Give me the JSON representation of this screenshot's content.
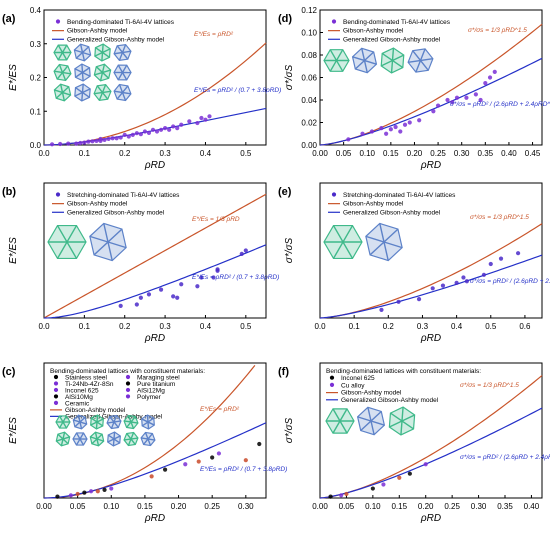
{
  "colors": {
    "bending": "#7a2fd6",
    "stretching": "#4a2ac9",
    "gibson_ashby": "#c9552a",
    "generalized": "#2430c8",
    "axis": "#000000",
    "lattice_green": "#3fb98a",
    "lattice_blue": "#5d82c8"
  },
  "chart_data": [
    {
      "id": "a",
      "panel_label": "(a)",
      "type": "scatter",
      "xlabel": "ρRD",
      "ylabel": "E*/ES",
      "xlim": [
        0,
        0.55
      ],
      "ylim": [
        0,
        0.4
      ],
      "xticks": [
        0.0,
        0.1,
        0.2,
        0.3,
        0.4,
        0.5
      ],
      "yticks": [
        0.0,
        0.1,
        0.2,
        0.3,
        0.4
      ],
      "tick_labels_x": [
        "0.0",
        "0.1",
        "0.2",
        "0.3",
        "0.4",
        "0.5"
      ],
      "tick_labels_y": [
        "0.0",
        "0.1",
        "0.2",
        "0.3",
        "0.4"
      ],
      "legend": [
        "Bending-dominated Ti-6Al-4V lattices",
        "Gibson-Ashby model",
        "Generalized Gibson-Ashby model"
      ],
      "equations": [
        {
          "text": "E*/Es = ρRD²",
          "series": "Gibson-Ashby model"
        },
        {
          "text": "E*/Es = ρRD² / (0.7 + 3.8ρRD)",
          "series": "Generalized Gibson-Ashby model"
        }
      ],
      "points": [
        [
          0.02,
          0.002
        ],
        [
          0.04,
          0.003
        ],
        [
          0.06,
          0.004
        ],
        [
          0.08,
          0.004
        ],
        [
          0.09,
          0.006
        ],
        [
          0.1,
          0.007
        ],
        [
          0.11,
          0.01
        ],
        [
          0.12,
          0.011
        ],
        [
          0.13,
          0.012
        ],
        [
          0.14,
          0.012
        ],
        [
          0.14,
          0.018
        ],
        [
          0.15,
          0.015
        ],
        [
          0.16,
          0.018
        ],
        [
          0.17,
          0.02
        ],
        [
          0.18,
          0.02
        ],
        [
          0.19,
          0.022
        ],
        [
          0.2,
          0.03
        ],
        [
          0.21,
          0.025
        ],
        [
          0.22,
          0.03
        ],
        [
          0.23,
          0.035
        ],
        [
          0.24,
          0.032
        ],
        [
          0.25,
          0.04
        ],
        [
          0.26,
          0.036
        ],
        [
          0.27,
          0.045
        ],
        [
          0.28,
          0.04
        ],
        [
          0.29,
          0.045
        ],
        [
          0.3,
          0.05
        ],
        [
          0.31,
          0.045
        ],
        [
          0.32,
          0.055
        ],
        [
          0.33,
          0.05
        ],
        [
          0.34,
          0.06
        ],
        [
          0.36,
          0.07
        ],
        [
          0.38,
          0.065
        ],
        [
          0.39,
          0.08
        ],
        [
          0.4,
          0.075
        ],
        [
          0.41,
          0.085
        ]
      ],
      "series": [
        {
          "name": "Gibson-Ashby model",
          "kind": "power",
          "coef": 1,
          "exp": 2,
          "color": "#c9552a"
        },
        {
          "name": "Generalized Gibson-Ashby model",
          "kind": "generalized",
          "a": 0.7,
          "b": 3.8,
          "color": "#2430c8"
        }
      ]
    },
    {
      "id": "d",
      "panel_label": "(d)",
      "type": "scatter",
      "xlabel": "ρRD",
      "ylabel": "σ*/σS",
      "xlim": [
        0,
        0.47
      ],
      "ylim": [
        0,
        0.12
      ],
      "xticks": [
        0.0,
        0.05,
        0.1,
        0.15,
        0.2,
        0.25,
        0.3,
        0.35,
        0.4,
        0.45
      ],
      "yticks": [
        0.0,
        0.02,
        0.04,
        0.06,
        0.08,
        0.1,
        0.12
      ],
      "tick_labels_x": [
        "0.00",
        "0.05",
        "0.10",
        "0.15",
        "0.20",
        "0.25",
        "0.30",
        "0.35",
        "0.40",
        "0.45"
      ],
      "tick_labels_y": [
        "0.00",
        "0.02",
        "0.04",
        "0.06",
        "0.08",
        "0.10",
        "0.12"
      ],
      "legend": [
        "Bending-dominated Ti-6Al-4V lattices",
        "Gibson-Ashby model",
        "Generalized Gibson-Ashby model"
      ],
      "equations": [
        {
          "text": "σ*/σs = 1/3 ρRD^1.5",
          "series": "Gibson-Ashby model"
        },
        {
          "text": "σ*/σs = ρRD² / (2.6ρRD + 2.4ρRD^0.5)",
          "series": "Generalized Gibson-Ashby model"
        }
      ],
      "points": [
        [
          0.06,
          0.005
        ],
        [
          0.09,
          0.01
        ],
        [
          0.11,
          0.012
        ],
        [
          0.13,
          0.015
        ],
        [
          0.14,
          0.01
        ],
        [
          0.15,
          0.014
        ],
        [
          0.16,
          0.016
        ],
        [
          0.17,
          0.012
        ],
        [
          0.18,
          0.018
        ],
        [
          0.19,
          0.02
        ],
        [
          0.21,
          0.022
        ],
        [
          0.24,
          0.03
        ],
        [
          0.25,
          0.035
        ],
        [
          0.27,
          0.04
        ],
        [
          0.28,
          0.038
        ],
        [
          0.29,
          0.042
        ],
        [
          0.31,
          0.042
        ],
        [
          0.33,
          0.045
        ],
        [
          0.34,
          0.04
        ],
        [
          0.35,
          0.055
        ],
        [
          0.36,
          0.06
        ],
        [
          0.37,
          0.065
        ]
      ],
      "series": [
        {
          "name": "Gibson-Ashby model",
          "kind": "power",
          "coef": 0.3333,
          "exp": 1.5,
          "color": "#c9552a"
        },
        {
          "name": "Generalized Gibson-Ashby model",
          "kind": "generalized_sqrt",
          "a": 2.6,
          "b": 2.4,
          "color": "#2430c8"
        }
      ]
    },
    {
      "id": "b",
      "panel_label": "(b)",
      "type": "scatter",
      "xlabel": "ρRD",
      "ylabel": "E*/ES",
      "xlim": [
        0,
        0.55
      ],
      "ylim": [
        0,
        0.2
      ],
      "xticks": [
        0.0,
        0.1,
        0.2,
        0.3,
        0.4,
        0.5
      ],
      "yticks": [],
      "tick_labels_x": [
        "0.0",
        "0.1",
        "0.2",
        "0.3",
        "0.4",
        "0.5"
      ],
      "tick_labels_y": [],
      "legend": [
        "Stretching-dominated Ti-6Al-4V lattices",
        "Gibson-Ashby model",
        "Generalized Gibson-Ashby model"
      ],
      "equations": [
        {
          "text": "E*/Es = 1/3 ρRD",
          "series": "Gibson-Ashby model"
        },
        {
          "text": "E*/Es = ρRD² / (0.7 + 3.8ρRD)",
          "series": "Generalized Gibson-Ashby model"
        }
      ],
      "points": [
        [
          0.19,
          0.018
        ],
        [
          0.23,
          0.02
        ],
        [
          0.24,
          0.03
        ],
        [
          0.26,
          0.035
        ],
        [
          0.29,
          0.042
        ],
        [
          0.32,
          0.032
        ],
        [
          0.33,
          0.03
        ],
        [
          0.34,
          0.05
        ],
        [
          0.38,
          0.047
        ],
        [
          0.39,
          0.06
        ],
        [
          0.42,
          0.06
        ],
        [
          0.43,
          0.07
        ],
        [
          0.43,
          0.072
        ],
        [
          0.49,
          0.095
        ],
        [
          0.5,
          0.1
        ]
      ],
      "series": [
        {
          "name": "Gibson-Ashby model",
          "kind": "power",
          "coef": 0.3333,
          "exp": 1,
          "color": "#c9552a"
        },
        {
          "name": "Generalized Gibson-Ashby model",
          "kind": "generalized",
          "a": 0.7,
          "b": 3.8,
          "color": "#2430c8"
        }
      ]
    },
    {
      "id": "e",
      "panel_label": "(e)",
      "type": "scatter",
      "xlabel": "ρRD",
      "ylabel": "σ*/σS",
      "xlim": [
        0,
        0.65
      ],
      "ylim": [
        0,
        0.25
      ],
      "xticks": [
        0.0,
        0.1,
        0.2,
        0.3,
        0.4,
        0.5,
        0.6
      ],
      "yticks": [],
      "tick_labels_x": [
        "0.0",
        "0.1",
        "0.2",
        "0.3",
        "0.4",
        "0.5",
        "0.6"
      ],
      "tick_labels_y": [],
      "legend": [
        "Stretching-dominated Ti-6Al-4V lattices",
        "Gibson-Ashby model",
        "Generalized Gibson-Ashby model"
      ],
      "equations": [
        {
          "text": "σ*/σs = 1/3 ρRD^1.5",
          "series": "Gibson-Ashby model"
        },
        {
          "text": "σ*/σs = ρRD² / (2.6ρRD + 2.4ρRD^0.5)",
          "series": "Generalized Gibson-Ashby model"
        }
      ],
      "points": [
        [
          0.18,
          0.015
        ],
        [
          0.23,
          0.03
        ],
        [
          0.29,
          0.035
        ],
        [
          0.33,
          0.055
        ],
        [
          0.36,
          0.06
        ],
        [
          0.4,
          0.065
        ],
        [
          0.42,
          0.075
        ],
        [
          0.43,
          0.068
        ],
        [
          0.48,
          0.08
        ],
        [
          0.5,
          0.1
        ],
        [
          0.53,
          0.11
        ],
        [
          0.58,
          0.12
        ]
      ],
      "series": [
        {
          "name": "Gibson-Ashby model",
          "kind": "power",
          "coef": 0.3333,
          "exp": 1.5,
          "color": "#c9552a"
        },
        {
          "name": "Generalized Gibson-Ashby model",
          "kind": "generalized_sqrt",
          "a": 2.6,
          "b": 2.4,
          "color": "#2430c8"
        }
      ]
    },
    {
      "id": "c",
      "panel_label": "(c)",
      "type": "scatter",
      "xlabel": "ρRD",
      "ylabel": "E*/ES",
      "xlim": [
        0,
        0.33
      ],
      "ylim": [
        0,
        0.1
      ],
      "xticks": [
        0.0,
        0.05,
        0.1,
        0.15,
        0.2,
        0.25,
        0.3
      ],
      "yticks": [],
      "tick_labels_x": [
        "0.00",
        "0.05",
        "0.10",
        "0.15",
        "0.20",
        "0.25",
        "0.30"
      ],
      "tick_labels_y": [],
      "legend_title": "Bending-dominated lattices with constituent materials:",
      "legend": [
        "Stainless steel",
        "Maraging steel",
        "Ti-24Nb-4Zr-8Sn",
        "Pure titanium",
        "Inconel 625",
        "AlSi12Mg",
        "AlSi10Mg",
        "Polymer",
        "Ceramic",
        "Gibson-Ashby model",
        "Generalized Gibson-Ashby model"
      ],
      "equations": [
        {
          "text": "E*/Es = ρRD²",
          "series": "Gibson-Ashby model"
        },
        {
          "text": "E*/Es = ρRD² / (0.7 + 3.8ρRD)",
          "series": "Generalized Gibson-Ashby model"
        }
      ],
      "points": [
        [
          0.02,
          0.001
        ],
        [
          0.04,
          0.002
        ],
        [
          0.05,
          0.003
        ],
        [
          0.06,
          0.004
        ],
        [
          0.07,
          0.005
        ],
        [
          0.08,
          0.005
        ],
        [
          0.09,
          0.006
        ],
        [
          0.1,
          0.007
        ],
        [
          0.16,
          0.016
        ],
        [
          0.18,
          0.021
        ],
        [
          0.21,
          0.025
        ],
        [
          0.23,
          0.027
        ],
        [
          0.25,
          0.03
        ],
        [
          0.26,
          0.033
        ],
        [
          0.3,
          0.028
        ],
        [
          0.32,
          0.04
        ]
      ],
      "series": [
        {
          "name": "Gibson-Ashby model",
          "kind": "power",
          "coef": 1,
          "exp": 2,
          "color": "#c9552a"
        },
        {
          "name": "Generalized Gibson-Ashby model",
          "kind": "generalized",
          "a": 0.7,
          "b": 3.8,
          "color": "#2430c8"
        }
      ]
    },
    {
      "id": "f",
      "panel_label": "(f)",
      "type": "scatter",
      "xlabel": "ρRD",
      "ylabel": "σ*/σS",
      "xlim": [
        0,
        0.42
      ],
      "ylim": [
        0,
        0.1
      ],
      "xticks": [
        0.0,
        0.05,
        0.1,
        0.15,
        0.2,
        0.25,
        0.3,
        0.35,
        0.4
      ],
      "yticks": [],
      "tick_labels_x": [
        "0.00",
        "0.05",
        "0.10",
        "0.15",
        "0.20",
        "0.25",
        "0.30",
        "0.35",
        "0.40"
      ],
      "tick_labels_y": [],
      "legend_title": "Bending-dominated lattices with constituent materials:",
      "legend": [
        "Inconel 625",
        "Cu alloy",
        "Gibson-Ashby model",
        "Generalized Gibson-Ashby model"
      ],
      "equations": [
        {
          "text": "σ*/σs = 1/3 ρRD^1.5",
          "series": "Gibson-Ashby model"
        },
        {
          "text": "σ*/σs = ρRD² / (2.6ρRD + 2.4ρRD^0.5)",
          "series": "Generalized Gibson-Ashby model"
        }
      ],
      "points": [
        [
          0.02,
          0.001
        ],
        [
          0.04,
          0.002
        ],
        [
          0.05,
          0.003
        ],
        [
          0.1,
          0.007
        ],
        [
          0.12,
          0.01
        ],
        [
          0.15,
          0.015
        ],
        [
          0.17,
          0.018
        ],
        [
          0.2,
          0.025
        ]
      ],
      "series": [
        {
          "name": "Gibson-Ashby model",
          "kind": "power",
          "coef": 0.3333,
          "exp": 1.5,
          "color": "#c9552a"
        },
        {
          "name": "Generalized Gibson-Ashby model",
          "kind": "generalized_sqrt",
          "a": 2.6,
          "b": 2.4,
          "color": "#2430c8"
        }
      ]
    }
  ]
}
